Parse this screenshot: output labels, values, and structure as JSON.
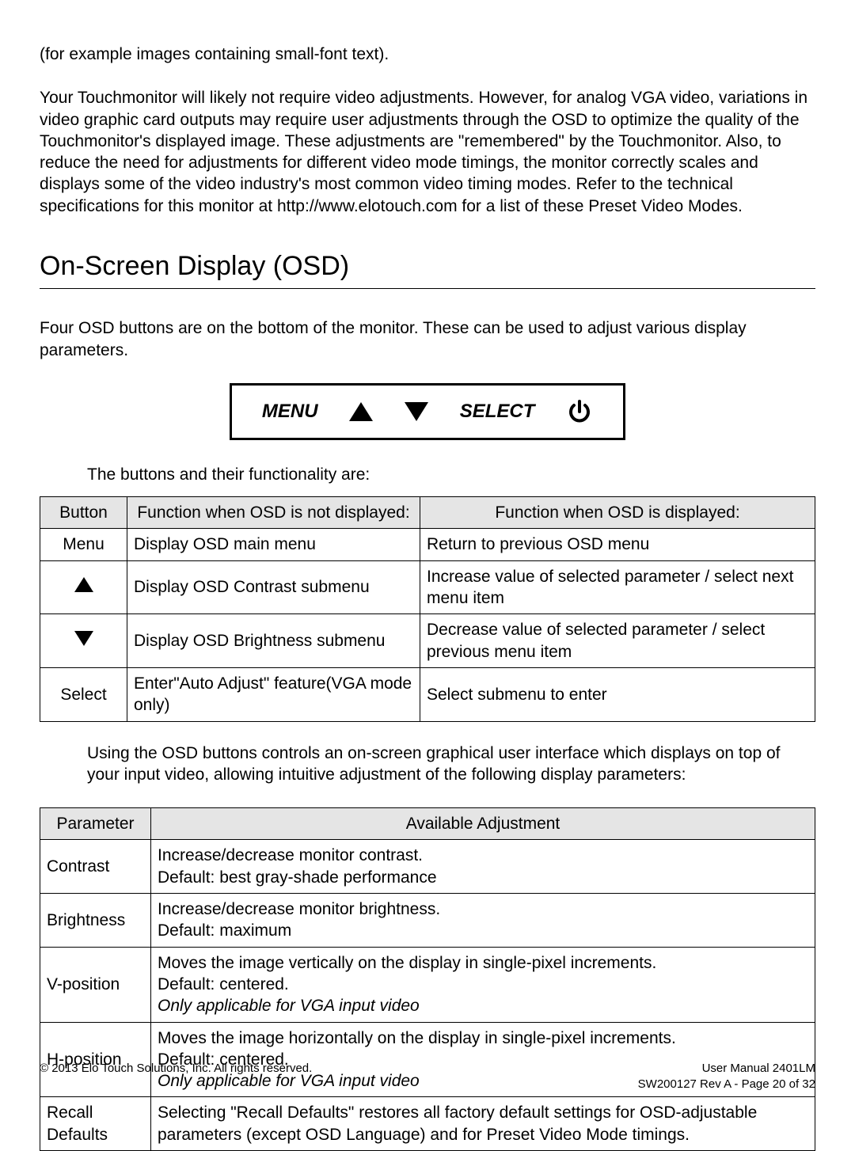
{
  "intro": {
    "para1": "(for example images containing small-font text).",
    "para2": "Your Touchmonitor will likely not require video adjustments. However, for analog VGA video, variations in video graphic card outputs may require user adjustments through the OSD to optimize the quality of the Touchmonitor's displayed image. These adjustments are \"remembered\" by the Touchmonitor. Also, to reduce the need for adjustments for different video mode timings, the monitor correctly scales and displays some of the video industry's most common video timing modes. Refer to the technical specifications for this monitor at http://www.elotouch.com for a list of these Preset Video Modes."
  },
  "heading": "On-Screen Display (OSD)",
  "after_heading": "Four OSD buttons are on the bottom of the monitor. These can be used to adjust various display parameters.",
  "button_panel": {
    "menu_label": "MENU",
    "select_label": "SELECT",
    "border_color": "#000000",
    "background": "#ffffff"
  },
  "buttons_intro": "The buttons and their functionality are:",
  "buttons_table": {
    "header_bg": "#e5e5e5",
    "columns": [
      "Button",
      "Function when OSD is not displayed:",
      "Function when OSD is displayed:"
    ],
    "rows": [
      {
        "button_type": "text",
        "button": "Menu",
        "f1": "Display OSD main menu",
        "f2": "Return to previous OSD menu"
      },
      {
        "button_type": "up-icon",
        "button": "",
        "f1": "Display OSD Contrast submenu",
        "f2": "Increase value of selected parameter / select next menu item"
      },
      {
        "button_type": "down-icon",
        "button": "",
        "f1": "Display OSD Brightness submenu",
        "f2": "Decrease value of selected parameter / select previous menu item"
      },
      {
        "button_type": "text",
        "button": "Select",
        "f1": "Enter\"Auto Adjust\" feature(VGA mode only)",
        "f2": "Select submenu to enter"
      }
    ]
  },
  "params_intro": "Using the OSD buttons controls an on-screen graphical user interface which displays on top of your input video, allowing intuitive adjustment of the following display parameters:",
  "params_table": {
    "header_bg": "#e5e5e5",
    "columns": [
      "Parameter",
      "Available Adjustment"
    ],
    "rows": [
      {
        "param": "Contrast",
        "lines": [
          "Increase/decrease monitor contrast.",
          "Default: best gray-shade performance"
        ],
        "italic": [
          false,
          false
        ]
      },
      {
        "param": "Brightness",
        "lines": [
          "Increase/decrease monitor brightness.",
          "Default: maximum"
        ],
        "italic": [
          false,
          false
        ]
      },
      {
        "param": "V-position",
        "lines": [
          "Moves the image vertically on the display in single-pixel increments.",
          "Default: centered.",
          "Only applicable for VGA input video"
        ],
        "italic": [
          false,
          false,
          true
        ]
      },
      {
        "param": "H-position",
        "lines": [
          "Moves the image horizontally on the display in single-pixel increments.",
          "Default: centered.",
          "Only applicable for VGA input video"
        ],
        "italic": [
          false,
          false,
          true
        ]
      },
      {
        "param": "Recall Defaults",
        "lines": [
          "Selecting \"Recall Defaults\" restores all factory default settings for OSD-adjustable parameters (except OSD Language) and for Preset Video Mode timings."
        ],
        "italic": [
          false
        ]
      }
    ]
  },
  "footer": {
    "left": "© 2013 Elo Touch Solutions, Inc. All rights reserved.",
    "right_line1": "User Manual   2401LM",
    "right_line2": "SW200127 Rev A    -    Page 20 of 32"
  }
}
